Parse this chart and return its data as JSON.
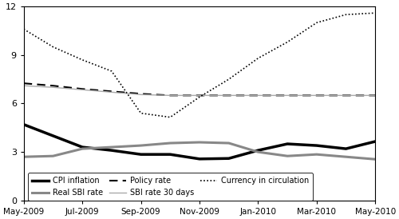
{
  "x_labels": [
    "May-2009",
    "Jul-2009",
    "Sep-2009",
    "Nov-2009",
    "Jan-2010",
    "Mar-2010",
    "May-2010"
  ],
  "x_ticks": [
    0,
    2,
    4,
    6,
    8,
    10,
    12
  ],
  "ylim": [
    0,
    12
  ],
  "yticks": [
    0,
    3,
    6,
    9,
    12
  ],
  "cpi_inflation": {
    "x": [
      0,
      1,
      2,
      3,
      4,
      5,
      6,
      7,
      8,
      9,
      10,
      11,
      12
    ],
    "y": [
      4.7,
      4.0,
      3.3,
      3.1,
      2.85,
      2.85,
      2.57,
      2.6,
      3.1,
      3.5,
      3.4,
      3.2,
      3.65
    ],
    "color": "#000000",
    "linewidth": 2.5,
    "linestyle": "solid",
    "label": "CPI inflation"
  },
  "real_sbi_rate": {
    "x": [
      0,
      1,
      2,
      3,
      4,
      5,
      6,
      7,
      8,
      9,
      10,
      11,
      12
    ],
    "y": [
      2.7,
      2.75,
      3.2,
      3.3,
      3.4,
      3.55,
      3.6,
      3.55,
      3.0,
      2.75,
      2.85,
      2.7,
      2.55
    ],
    "color": "#888888",
    "linewidth": 2.2,
    "linestyle": "solid",
    "label": "Real SBI rate"
  },
  "policy_rate": {
    "x": [
      0,
      1,
      2,
      3,
      4,
      5,
      6,
      7,
      8,
      9,
      10,
      11,
      12
    ],
    "y": [
      7.25,
      7.1,
      6.9,
      6.75,
      6.6,
      6.5,
      6.5,
      6.5,
      6.5,
      6.5,
      6.5,
      6.5,
      6.5
    ],
    "color": "#000000",
    "linewidth": 1.5,
    "linestyle": "dashed_sparse",
    "label": "Policy rate"
  },
  "sbi_rate_30": {
    "x": [
      0,
      1,
      2,
      3,
      4,
      5,
      6,
      7,
      8,
      9,
      10,
      11,
      12
    ],
    "y": [
      7.1,
      7.0,
      6.85,
      6.7,
      6.55,
      6.5,
      6.5,
      6.5,
      6.5,
      6.5,
      6.5,
      6.5,
      6.5
    ],
    "color": "#aaaaaa",
    "linewidth": 1.0,
    "linestyle": "solid",
    "label": "SBI rate 30 days"
  },
  "currency_circ": {
    "x": [
      0,
      1,
      2,
      3,
      4,
      5,
      6,
      7,
      8,
      9,
      10,
      11,
      12
    ],
    "y": [
      10.6,
      9.5,
      8.7,
      8.0,
      5.4,
      5.15,
      6.4,
      7.5,
      8.8,
      9.8,
      11.0,
      11.5,
      11.6
    ],
    "color": "#000000",
    "linewidth": 1.2,
    "linestyle": "dotted_dense",
    "label": "Currency in circulation"
  },
  "background_color": "#ffffff",
  "spine_color": "#000000"
}
